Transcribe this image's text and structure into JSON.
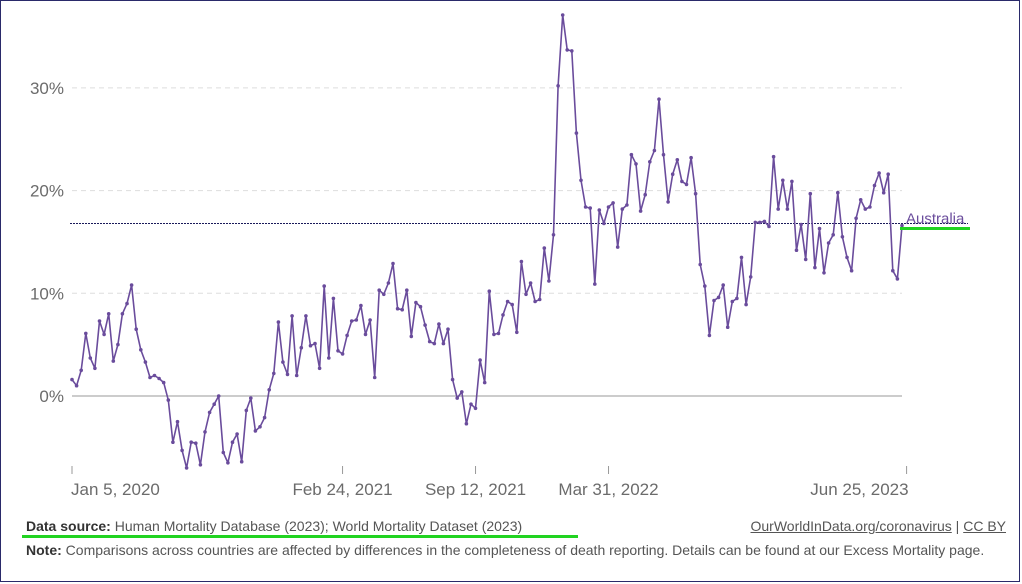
{
  "chart_data": {
    "type": "line",
    "title": "",
    "xlabel": "",
    "ylabel": "",
    "ylim": [
      -7,
      37
    ],
    "yticks": [
      0,
      10,
      20,
      30
    ],
    "ytick_labels": [
      "0%",
      "10%",
      "20%",
      "30%"
    ],
    "xtick_labels": [
      "Jan 5, 2020",
      "Feb 24, 2021",
      "Sep 12, 2021",
      "Mar 31, 2022",
      "Jun 25, 2023"
    ],
    "xtick_index": [
      0,
      59,
      88,
      117,
      182
    ],
    "reference_line_value": 16.8,
    "series": [
      {
        "name": "Australia",
        "color": "#6a4c9c",
        "label_color": "#6a4c9c",
        "label_underline_color": "#21d321",
        "values": [
          1.6,
          1.0,
          2.5,
          6.1,
          3.7,
          2.7,
          7.3,
          6.0,
          8.0,
          3.4,
          5.0,
          8.0,
          9.0,
          10.8,
          6.5,
          4.5,
          3.3,
          1.8,
          2.0,
          1.7,
          1.3,
          -0.4,
          -4.5,
          -2.5,
          -5.3,
          -7.0,
          -4.5,
          -4.6,
          -6.7,
          -3.5,
          -1.6,
          -0.8,
          0.0,
          -5.5,
          -6.5,
          -4.5,
          -3.7,
          -6.4,
          -1.4,
          -0.2,
          -3.4,
          -3.0,
          -2.1,
          0.6,
          2.2,
          7.2,
          3.3,
          2.1,
          7.8,
          2.0,
          4.7,
          7.8,
          4.9,
          5.1,
          2.7,
          10.7,
          3.7,
          9.5,
          4.4,
          4.1,
          5.9,
          7.3,
          7.4,
          8.8,
          6.0,
          7.4,
          1.8,
          10.3,
          9.9,
          11.0,
          12.9,
          8.5,
          8.4,
          10.3,
          5.8,
          9.1,
          8.7,
          6.9,
          5.3,
          5.1,
          7.0,
          5.1,
          6.5,
          1.6,
          -0.2,
          0.4,
          -2.7,
          -0.8,
          -1.2,
          3.5,
          1.3,
          10.2,
          6.0,
          6.1,
          7.9,
          9.2,
          8.9,
          6.2,
          13.1,
          9.9,
          11.0,
          9.2,
          9.4,
          14.4,
          11.2,
          15.7,
          30.2,
          37.1,
          33.7,
          33.6,
          25.6,
          21.0,
          18.4,
          18.3,
          10.9,
          18.1,
          16.8,
          18.4,
          18.8,
          14.5,
          18.2,
          18.6,
          23.5,
          22.6,
          18.0,
          19.6,
          22.8,
          23.9,
          28.9,
          23.5,
          18.9,
          21.6,
          23.0,
          20.9,
          20.6,
          23.2,
          19.7,
          12.8,
          10.7,
          5.9,
          9.3,
          9.6,
          10.8,
          6.7,
          9.2,
          9.5,
          13.5,
          8.9,
          11.6,
          16.9,
          16.9,
          17.0,
          16.5,
          23.3,
          18.2,
          21.0,
          18.2,
          20.9,
          14.2,
          16.7,
          13.3,
          19.7,
          12.5,
          16.3,
          12.0,
          14.9,
          15.7,
          19.8,
          15.5,
          13.5,
          12.2,
          17.3,
          19.1,
          18.2,
          18.4,
          20.5,
          21.7,
          19.8,
          21.6,
          12.2,
          11.4,
          16.6
        ]
      }
    ],
    "annotations": [
      "Australia"
    ]
  },
  "footer": {
    "source_label": "Data source:",
    "source_text": "Human Mortality Database (2023); World Mortality Dataset (2023)",
    "site_link": "OurWorldInData.org/coronavirus",
    "separator": "|",
    "license": "CC BY",
    "note_label": "Note:",
    "note_text": "Comparisons across countries are affected by differences in the completeness of death reporting. Details can be found at our Excess Mortality page."
  },
  "colors": {
    "line": "#6a4c9c",
    "grid": "#dddddd",
    "zero_line": "#bbbbbb",
    "reference_line": "#1a1a5a",
    "highlight": "#21d321"
  }
}
